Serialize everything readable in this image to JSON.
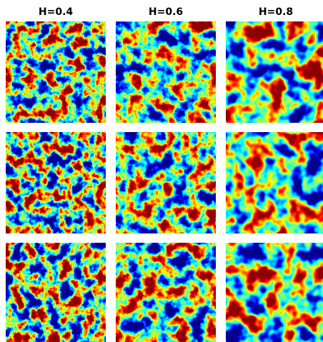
{
  "panels": {
    "columns": [
      {
        "title": "H=0.4"
      },
      {
        "title": "H=0.6"
      },
      {
        "title": "H=0.8"
      }
    ]
  }
}
